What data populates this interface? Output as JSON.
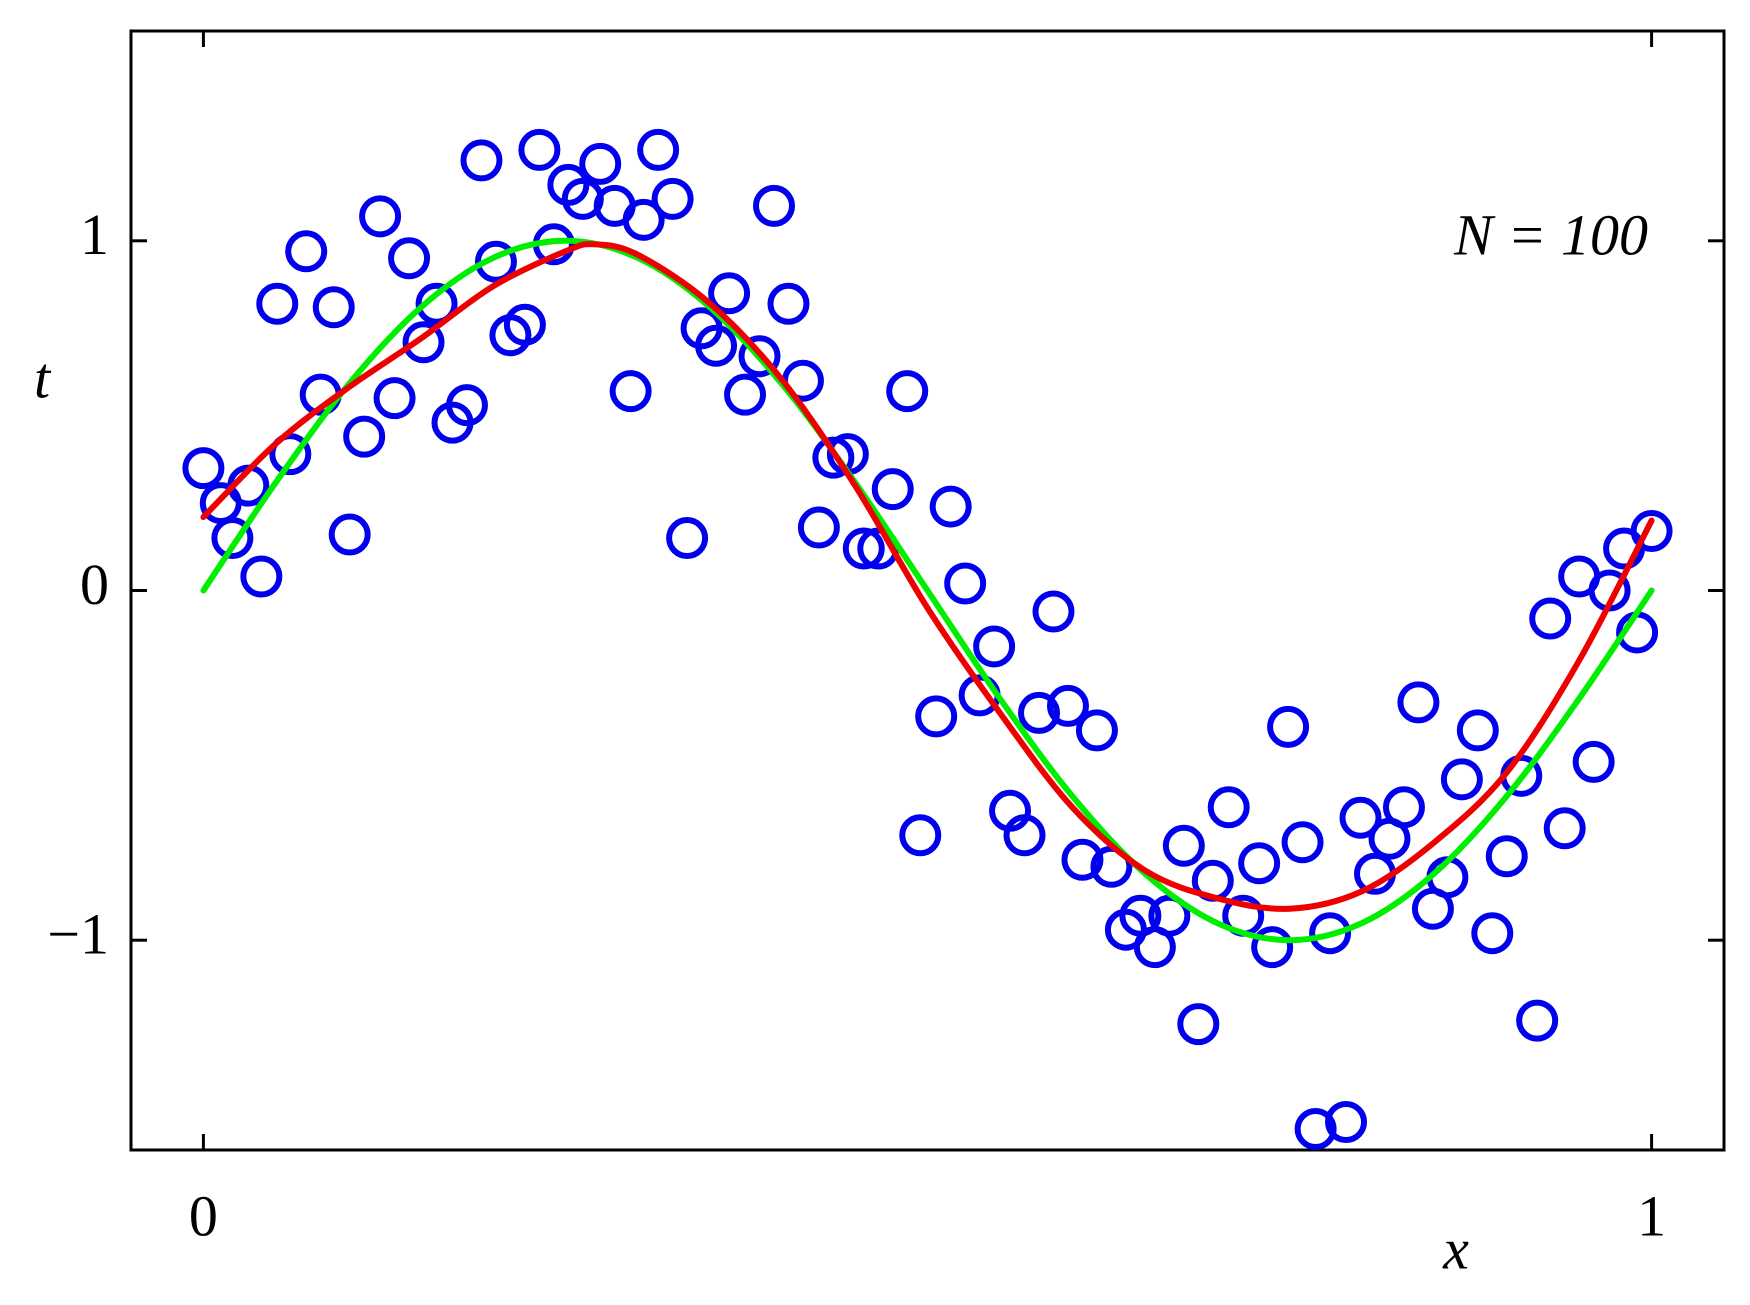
{
  "chart_data": {
    "type": "scatter",
    "xlabel": "x",
    "ylabel": "t",
    "annotation": "N = 100",
    "xlim": [
      -0.05,
      1.05
    ],
    "ylim": [
      -1.6,
      1.6
    ],
    "xticks": [
      0,
      1
    ],
    "yticks": [
      {
        "value": -1,
        "label": "−1"
      },
      0,
      1
    ],
    "points": {
      "color": "#0000ee",
      "x": [
        0,
        0.012,
        0.031,
        0.02,
        0.04,
        0.051,
        0.06,
        0.071,
        0.081,
        0.09,
        0.101,
        0.111,
        0.122,
        0.132,
        0.142,
        0.152,
        0.161,
        0.172,
        0.182,
        0.192,
        0.202,
        0.212,
        0.222,
        0.232,
        0.242,
        0.252,
        0.262,
        0.274,
        0.284,
        0.295,
        0.304,
        0.314,
        0.324,
        0.334,
        0.344,
        0.354,
        0.363,
        0.374,
        0.384,
        0.394,
        0.404,
        0.414,
        0.425,
        0.435,
        0.445,
        0.456,
        0.466,
        0.476,
        0.486,
        0.495,
        0.506,
        0.516,
        0.526,
        0.536,
        0.546,
        0.557,
        0.567,
        0.577,
        0.587,
        0.597,
        0.607,
        0.617,
        0.627,
        0.637,
        0.647,
        0.657,
        0.667,
        0.677,
        0.687,
        0.697,
        0.708,
        0.718,
        0.729,
        0.738,
        0.749,
        0.759,
        0.768,
        0.778,
        0.789,
        0.799,
        0.809,
        0.819,
        0.829,
        0.839,
        0.849,
        0.859,
        0.869,
        0.88,
        0.89,
        0.9,
        0.91,
        0.921,
        0.93,
        0.94,
        0.95,
        0.96,
        0.971,
        0.981,
        0.99,
        1.0
      ],
      "values": [
        0.35,
        0.25,
        0.3,
        0.15,
        0.04,
        0.82,
        0.39,
        0.97,
        0.56,
        0.81,
        0.16,
        0.44,
        1.07,
        0.55,
        0.95,
        0.71,
        0.82,
        0.48,
        0.53,
        1.23,
        0.94,
        0.73,
        0.76,
        1.26,
        0.99,
        1.16,
        1.12,
        1.22,
        1.1,
        0.57,
        1.06,
        1.26,
        1.12,
        0.15,
        0.75,
        0.7,
        0.85,
        0.56,
        0.67,
        1.1,
        0.82,
        0.6,
        0.18,
        0.38,
        0.39,
        0.12,
        0.12,
        0.29,
        0.57,
        -0.7,
        -0.36,
        0.24,
        0.02,
        -0.3,
        -0.16,
        -0.63,
        -0.7,
        -0.35,
        -0.06,
        -0.33,
        -0.77,
        -0.4,
        -0.79,
        -0.97,
        -0.93,
        -1.02,
        -0.93,
        -0.73,
        -1.24,
        -0.83,
        -0.62,
        -0.93,
        -0.78,
        -1.02,
        -0.39,
        -0.72,
        -1.54,
        -0.98,
        -1.52,
        -0.65,
        -0.81,
        -0.71,
        -0.62,
        -0.32,
        -0.91,
        -0.82,
        -0.54,
        -0.4,
        -0.98,
        -0.76,
        -0.53,
        -1.23,
        -0.08,
        -0.68,
        0.04,
        -0.49,
        0.0,
        0.12,
        -0.12,
        0.17
      ]
    },
    "curves": [
      {
        "color": "#00ee00",
        "x": [
          0,
          0.05,
          0.1,
          0.15,
          0.2,
          0.25,
          0.3,
          0.35,
          0.4,
          0.45,
          0.5,
          0.55,
          0.6,
          0.65,
          0.7,
          0.75,
          0.8,
          0.85,
          0.9,
          0.95,
          1.0
        ],
        "values": [
          0,
          0.309,
          0.588,
          0.809,
          0.951,
          1,
          0.951,
          0.809,
          0.588,
          0.309,
          0,
          -0.309,
          -0.588,
          -0.809,
          -0.951,
          -1,
          -0.951,
          -0.809,
          -0.588,
          -0.309,
          0
        ]
      },
      {
        "color": "#ee0000",
        "x": [
          0,
          0.05,
          0.1,
          0.15,
          0.2,
          0.25,
          0.27,
          0.3,
          0.35,
          0.4,
          0.45,
          0.5,
          0.55,
          0.6,
          0.65,
          0.7,
          0.75,
          0.8,
          0.85,
          0.9,
          0.95,
          1.0
        ],
        "values": [
          0.21,
          0.42,
          0.58,
          0.72,
          0.87,
          0.97,
          0.99,
          0.96,
          0.82,
          0.6,
          0.3,
          -0.05,
          -0.35,
          -0.62,
          -0.8,
          -0.88,
          -0.91,
          -0.86,
          -0.72,
          -0.52,
          -0.2,
          0.2
        ]
      }
    ]
  }
}
